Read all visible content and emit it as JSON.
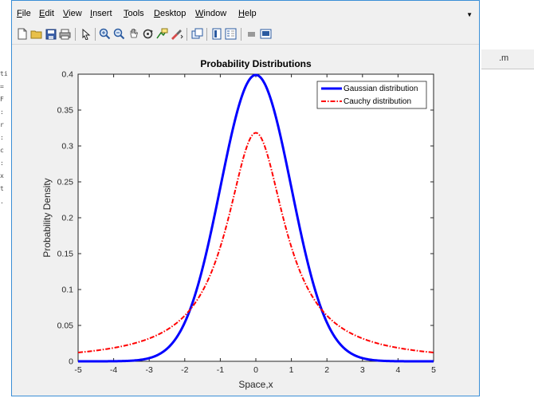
{
  "menubar": {
    "items": [
      "File",
      "Edit",
      "View",
      "Insert",
      "Tools",
      "Desktop",
      "Window",
      "Help"
    ]
  },
  "toolbar": {
    "icons": [
      "new-figure-icon",
      "open-file-icon",
      "save-icon",
      "print-icon",
      "select-arrow-icon",
      "zoom-in-icon",
      "zoom-out-icon",
      "pan-icon",
      "rotate-3d-icon",
      "data-cursor-icon",
      "brush-icon",
      "link-plot-icon",
      "colorbar-icon",
      "legend-icon",
      "hide-plot-tools-icon",
      "show-plot-tools-icon"
    ]
  },
  "background": {
    "right_tab_text": ".m",
    "left_fragments": [
      "ti",
      "=",
      "F",
      ":",
      "r",
      ":",
      "c",
      ":",
      "x",
      "t",
      "."
    ]
  },
  "colors": {
    "gaussian": "#0000ff",
    "cauchy": "#ff0000",
    "window_border": "#3a8ed6"
  },
  "chart_data": {
    "type": "line",
    "title": "Probability Distributions",
    "xlabel": "Space,x",
    "ylabel": "Probability Density",
    "xlim": [
      -5,
      5
    ],
    "ylim": [
      0,
      0.4
    ],
    "xticks": [
      "-5",
      "-4",
      "-3",
      "-2",
      "-1",
      "0",
      "1",
      "2",
      "3",
      "4",
      "5"
    ],
    "yticks": [
      "0",
      "0.05",
      "0.1",
      "0.15",
      "0.2",
      "0.25",
      "0.3",
      "0.35",
      "0.4"
    ],
    "grid": false,
    "legend_position": "top-right",
    "x": [
      -5,
      -4.5,
      -4,
      -3.5,
      -3,
      -2.5,
      -2,
      -1.5,
      -1,
      -0.5,
      0,
      0.5,
      1,
      1.5,
      2,
      2.5,
      3,
      3.5,
      4,
      4.5,
      5
    ],
    "series": [
      {
        "name": "Gaussian distribution",
        "style": "solid",
        "values": [
          1.5e-06,
          1.6e-05,
          0.000134,
          0.00087,
          0.0044,
          0.0175,
          0.054,
          0.1295,
          0.242,
          0.352,
          0.399,
          0.352,
          0.242,
          0.1295,
          0.054,
          0.0175,
          0.0044,
          0.00087,
          0.000134,
          1.6e-05,
          1.5e-06
        ]
      },
      {
        "name": "Cauchy distribution",
        "style": "dash-dot",
        "values": [
          0.0122,
          0.015,
          0.0187,
          0.024,
          0.0318,
          0.0439,
          0.0637,
          0.0979,
          0.1592,
          0.2546,
          0.3183,
          0.2546,
          0.1592,
          0.0979,
          0.0637,
          0.0439,
          0.0318,
          0.024,
          0.0187,
          0.015,
          0.0122
        ]
      }
    ]
  }
}
